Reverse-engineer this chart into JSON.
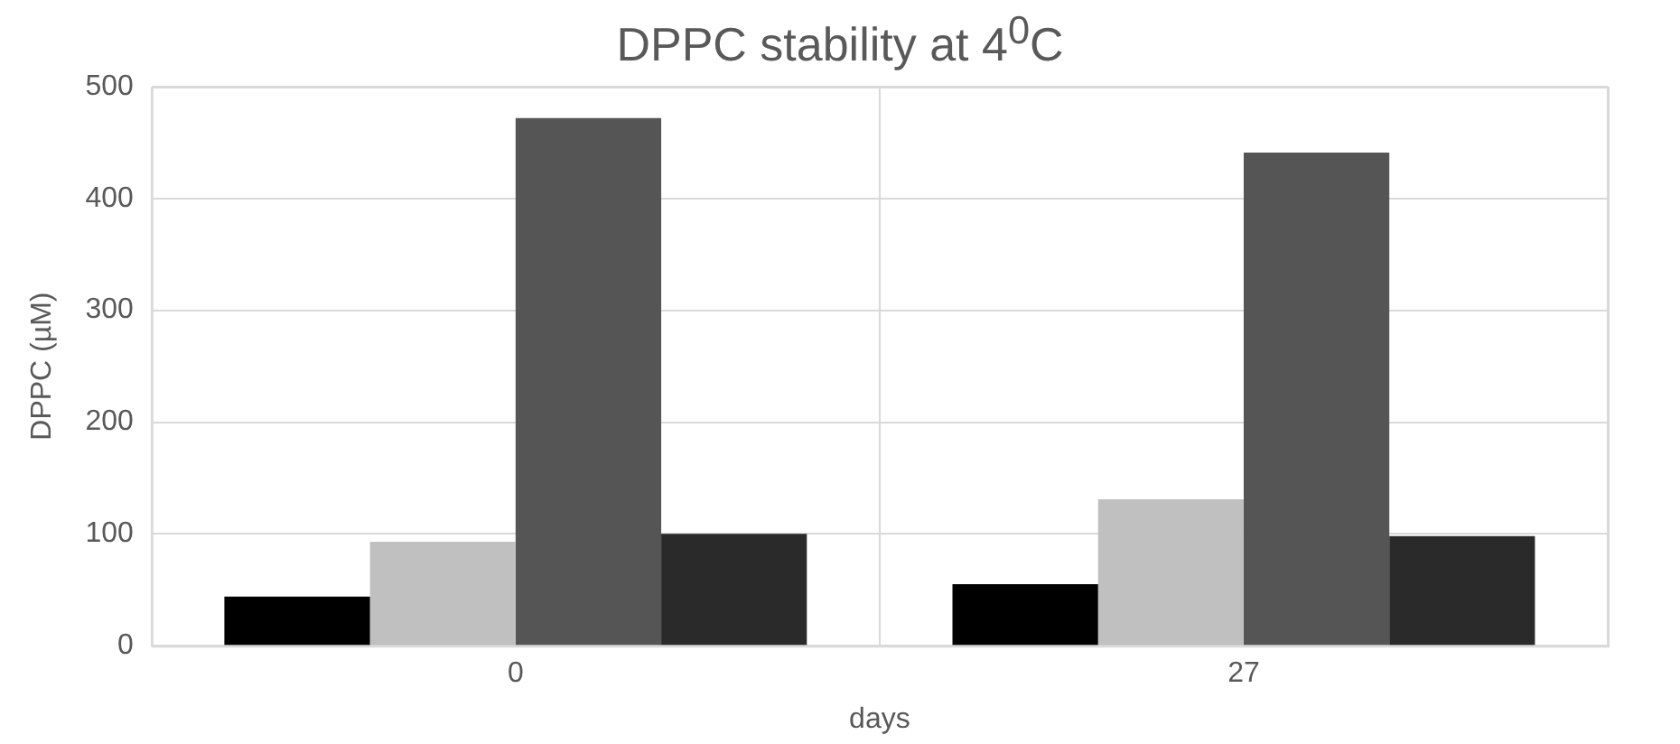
{
  "chart_data": {
    "type": "bar",
    "title": "DPPC stability at 4$^{0}$C",
    "xlabel": "days",
    "ylabel": "DPPC (µM)",
    "categories": [
      "0",
      "27"
    ],
    "series": [
      {
        "color": "#000000",
        "values": [
          44,
          55
        ]
      },
      {
        "color": "#c0c0c0",
        "values": [
          93,
          131
        ]
      },
      {
        "color": "#555555",
        "values": [
          472,
          441
        ]
      },
      {
        "color": "#2a2a2a",
        "values": [
          100,
          98
        ]
      }
    ],
    "ylim": [
      0,
      500
    ],
    "yticks": [
      0,
      100,
      200,
      300,
      400,
      500
    ],
    "grid": true,
    "legend": false
  }
}
